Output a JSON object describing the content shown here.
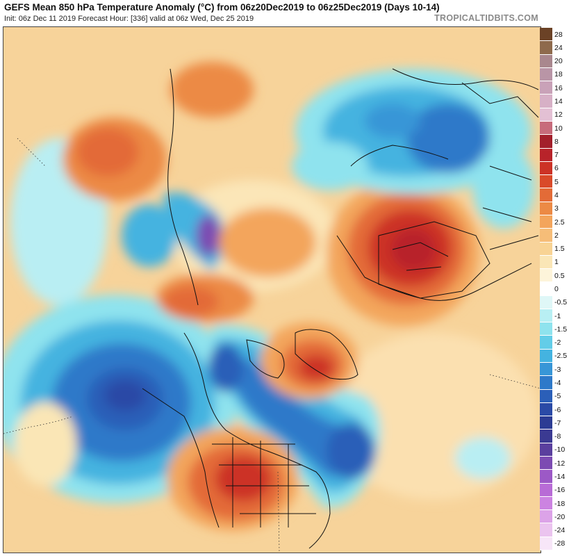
{
  "header": {
    "title": "GEFS Mean 850 hPa Temperature Anomaly (°C) from 06z20Dec2019 to 06z25Dec2019 (Days 10-14)",
    "subtitle": "Init: 06z Dec 11 2019   Forecast Hour: [336]   valid at 06z Wed, Dec 25 2019",
    "brand": "TROPICALTIDBITS.COM"
  },
  "colorbar": {
    "labels": [
      "28",
      "24",
      "20",
      "18",
      "16",
      "14",
      "12",
      "10",
      "8",
      "7",
      "6",
      "5",
      "4",
      "3",
      "2.5",
      "2",
      "1.5",
      "1",
      "0.5",
      "0",
      "-0.5",
      "-1",
      "-1.5",
      "-2",
      "-2.5",
      "-3",
      "-4",
      "-5",
      "-6",
      "-7",
      "-8",
      "-10",
      "-12",
      "-14",
      "-16",
      "-18",
      "-20",
      "-24",
      "-28"
    ],
    "colors": [
      "#6b4226",
      "#8e6a4c",
      "#a9878e",
      "#b995a6",
      "#c9a2b8",
      "#d7b0c6",
      "#e3c0d4",
      "#c76b7b",
      "#a31f2b",
      "#b8232a",
      "#cc3226",
      "#d94a2a",
      "#e36b37",
      "#ec8a45",
      "#f3a55c",
      "#f6bd78",
      "#f8d394",
      "#fae6b6",
      "#fdf4da",
      "#ffffff",
      "#dff7f7",
      "#b8eff3",
      "#8fe3ee",
      "#63cde8",
      "#44b3e0",
      "#3796d7",
      "#2e79c9",
      "#2b5fb8",
      "#2a4aa6",
      "#2c3c94",
      "#3b3a92",
      "#5a3f9e",
      "#7c4bb2",
      "#9c59c6",
      "#b86bd6",
      "#cc83e1",
      "#dca3e8",
      "#ebc4ef",
      "#f7e6f8"
    ]
  },
  "map": {
    "regions": [
      {
        "name": "neg-gulf-of-alaska",
        "fill": "#2b5fb8"
      },
      {
        "name": "neg-eastern-us",
        "fill": "#2e79c9"
      },
      {
        "name": "pos-russia",
        "fill": "#d94a2a"
      },
      {
        "name": "pos-southwest-us",
        "fill": "#cc3226"
      },
      {
        "name": "pos-greenland",
        "fill": "#e36b37"
      },
      {
        "name": "neg-siberia",
        "fill": "#3796d7"
      }
    ]
  }
}
